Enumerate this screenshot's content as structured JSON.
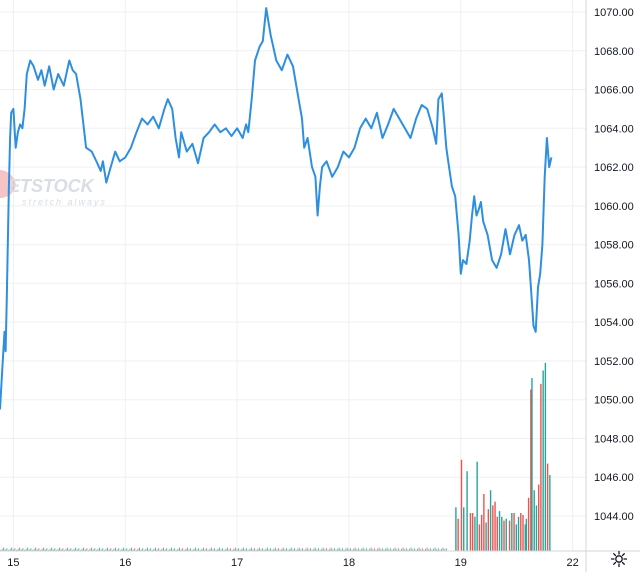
{
  "watermark": {
    "brand": "ETSTOCK",
    "tagline": "stretch always"
  },
  "icons": {
    "settings": "gear-icon"
  },
  "colors": {
    "price_line": "#2f8fdf",
    "volume_up": "#26a69a",
    "volume_down": "#ef5350",
    "grid": "#eef0f3",
    "watermark": "#d8dde6",
    "watermark_accent": "#e35a5a"
  },
  "chart_data": {
    "type": "line",
    "title": "",
    "xlabel": "",
    "ylabel": "",
    "grid": true,
    "x_ticks": [
      "15",
      "16",
      "17",
      "18",
      "19",
      "22"
    ],
    "x_tick_index": [
      0,
      1,
      2,
      3,
      4,
      5
    ],
    "y_ticks": [
      "1044.00",
      "1046.00",
      "1048.00",
      "1050.00",
      "1052.00",
      "1054.00",
      "1056.00",
      "1058.00",
      "1060.00",
      "1062.00",
      "1064.00",
      "1066.00",
      "1068.00",
      "1070.00"
    ],
    "ylim": [
      1042.0,
      1071.0
    ],
    "xlim": [
      -0.12,
      5.03
    ],
    "series": [
      {
        "kind": "price",
        "points": [
          [
            -0.12,
            1049.5
          ],
          [
            -0.1,
            1051.5
          ],
          [
            -0.08,
            1053.5
          ],
          [
            -0.07,
            1052.5
          ],
          [
            -0.06,
            1055.0
          ],
          [
            -0.04,
            1061.0
          ],
          [
            -0.03,
            1063.5
          ],
          [
            -0.02,
            1064.8
          ],
          [
            0.0,
            1065.0
          ],
          [
            0.02,
            1063.0
          ],
          [
            0.04,
            1063.8
          ],
          [
            0.06,
            1064.2
          ],
          [
            0.08,
            1064.0
          ],
          [
            0.1,
            1065.0
          ],
          [
            0.12,
            1066.8
          ],
          [
            0.15,
            1067.5
          ],
          [
            0.18,
            1067.2
          ],
          [
            0.22,
            1066.5
          ],
          [
            0.25,
            1067.0
          ],
          [
            0.28,
            1066.2
          ],
          [
            0.32,
            1067.2
          ],
          [
            0.36,
            1066.0
          ],
          [
            0.4,
            1066.8
          ],
          [
            0.45,
            1066.2
          ],
          [
            0.5,
            1067.5
          ],
          [
            0.53,
            1067.0
          ],
          [
            0.56,
            1066.8
          ],
          [
            0.6,
            1065.5
          ],
          [
            0.65,
            1063.0
          ],
          [
            0.7,
            1062.8
          ],
          [
            0.75,
            1062.2
          ],
          [
            0.78,
            1061.8
          ],
          [
            0.8,
            1062.3
          ],
          [
            0.83,
            1061.2
          ],
          [
            0.87,
            1062.0
          ],
          [
            0.91,
            1062.8
          ],
          [
            0.95,
            1062.3
          ],
          [
            1.0,
            1062.5
          ],
          [
            1.05,
            1063.0
          ],
          [
            1.1,
            1063.8
          ],
          [
            1.15,
            1064.5
          ],
          [
            1.2,
            1064.2
          ],
          [
            1.25,
            1064.6
          ],
          [
            1.3,
            1064.0
          ],
          [
            1.35,
            1065.0
          ],
          [
            1.38,
            1065.5
          ],
          [
            1.42,
            1065.0
          ],
          [
            1.45,
            1063.5
          ],
          [
            1.48,
            1062.5
          ],
          [
            1.5,
            1063.8
          ],
          [
            1.55,
            1062.8
          ],
          [
            1.6,
            1063.2
          ],
          [
            1.65,
            1062.2
          ],
          [
            1.7,
            1063.5
          ],
          [
            1.75,
            1063.8
          ],
          [
            1.8,
            1064.2
          ],
          [
            1.85,
            1063.8
          ],
          [
            1.9,
            1064.0
          ],
          [
            1.95,
            1063.6
          ],
          [
            2.0,
            1064.0
          ],
          [
            2.05,
            1063.5
          ],
          [
            2.08,
            1064.2
          ],
          [
            2.1,
            1063.8
          ],
          [
            2.13,
            1065.5
          ],
          [
            2.16,
            1067.5
          ],
          [
            2.2,
            1068.2
          ],
          [
            2.23,
            1068.5
          ],
          [
            2.26,
            1070.2
          ],
          [
            2.28,
            1069.5
          ],
          [
            2.3,
            1068.8
          ],
          [
            2.35,
            1067.5
          ],
          [
            2.4,
            1067.0
          ],
          [
            2.45,
            1067.8
          ],
          [
            2.5,
            1067.2
          ],
          [
            2.55,
            1065.5
          ],
          [
            2.58,
            1064.5
          ],
          [
            2.6,
            1063.0
          ],
          [
            2.63,
            1063.5
          ],
          [
            2.67,
            1062.0
          ],
          [
            2.7,
            1061.5
          ],
          [
            2.72,
            1059.5
          ],
          [
            2.74,
            1061.0
          ],
          [
            2.76,
            1062.0
          ],
          [
            2.8,
            1062.3
          ],
          [
            2.85,
            1061.5
          ],
          [
            2.9,
            1062.0
          ],
          [
            2.95,
            1062.8
          ],
          [
            3.0,
            1062.5
          ],
          [
            3.05,
            1063.0
          ],
          [
            3.1,
            1064.0
          ],
          [
            3.15,
            1064.5
          ],
          [
            3.2,
            1064.0
          ],
          [
            3.25,
            1064.8
          ],
          [
            3.3,
            1063.5
          ],
          [
            3.35,
            1064.2
          ],
          [
            3.4,
            1065.0
          ],
          [
            3.45,
            1064.5
          ],
          [
            3.5,
            1064.0
          ],
          [
            3.55,
            1063.5
          ],
          [
            3.6,
            1064.5
          ],
          [
            3.65,
            1065.2
          ],
          [
            3.7,
            1065.0
          ],
          [
            3.75,
            1064.0
          ],
          [
            3.78,
            1063.2
          ],
          [
            3.8,
            1065.5
          ],
          [
            3.83,
            1065.8
          ],
          [
            3.85,
            1064.5
          ],
          [
            3.87,
            1063.0
          ],
          [
            3.89,
            1062.2
          ],
          [
            3.92,
            1061.0
          ],
          [
            3.95,
            1060.5
          ],
          [
            3.98,
            1058.5
          ],
          [
            4.0,
            1056.5
          ],
          [
            4.02,
            1057.2
          ],
          [
            4.05,
            1057.0
          ],
          [
            4.08,
            1058.2
          ],
          [
            4.1,
            1059.5
          ],
          [
            4.12,
            1060.5
          ],
          [
            4.14,
            1059.5
          ],
          [
            4.16,
            1059.8
          ],
          [
            4.18,
            1060.2
          ],
          [
            4.2,
            1059.2
          ],
          [
            4.24,
            1058.5
          ],
          [
            4.28,
            1057.2
          ],
          [
            4.32,
            1056.8
          ],
          [
            4.36,
            1057.5
          ],
          [
            4.4,
            1058.8
          ],
          [
            4.44,
            1057.5
          ],
          [
            4.48,
            1058.5
          ],
          [
            4.52,
            1059.0
          ],
          [
            4.55,
            1058.2
          ],
          [
            4.58,
            1058.5
          ],
          [
            4.61,
            1057.2
          ],
          [
            4.63,
            1055.5
          ],
          [
            4.65,
            1053.8
          ],
          [
            4.67,
            1053.5
          ],
          [
            4.69,
            1055.8
          ],
          [
            4.71,
            1056.5
          ],
          [
            4.73,
            1058.0
          ],
          [
            4.75,
            1061.5
          ],
          [
            4.77,
            1063.5
          ],
          [
            4.79,
            1062.0
          ],
          [
            4.81,
            1062.5
          ]
        ]
      },
      {
        "kind": "volume",
        "bars": [
          [
            4.0,
            4.8,
            "down"
          ],
          [
            4.02,
            2.3,
            "up"
          ],
          [
            4.05,
            4.2,
            "up"
          ],
          [
            4.08,
            2.0,
            "down"
          ],
          [
            4.1,
            2.0,
            "down"
          ],
          [
            4.12,
            1.8,
            "up"
          ],
          [
            4.14,
            4.7,
            "up"
          ],
          [
            4.16,
            1.4,
            "down"
          ],
          [
            4.18,
            1.9,
            "down"
          ],
          [
            4.2,
            3.0,
            "down"
          ],
          [
            4.22,
            1.5,
            "up"
          ],
          [
            4.24,
            2.2,
            "down"
          ],
          [
            4.26,
            3.2,
            "up"
          ],
          [
            4.28,
            2.4,
            "down"
          ],
          [
            4.3,
            2.6,
            "down"
          ],
          [
            4.32,
            1.8,
            "down"
          ],
          [
            4.34,
            2.1,
            "up"
          ],
          [
            4.36,
            1.8,
            "up"
          ],
          [
            4.38,
            1.6,
            "down"
          ],
          [
            4.4,
            1.7,
            "up"
          ],
          [
            4.43,
            1.6,
            "down"
          ],
          [
            4.45,
            2.0,
            "up"
          ],
          [
            4.47,
            2.0,
            "down"
          ],
          [
            4.49,
            1.4,
            "up"
          ],
          [
            4.51,
            1.8,
            "up"
          ],
          [
            4.53,
            2.0,
            "down"
          ],
          [
            4.55,
            1.9,
            "down"
          ],
          [
            4.57,
            1.4,
            "up"
          ],
          [
            4.58,
            1.7,
            "up"
          ],
          [
            4.6,
            2.8,
            "down"
          ],
          [
            4.62,
            8.5,
            "down"
          ],
          [
            4.63,
            9.1,
            "up"
          ],
          [
            4.65,
            3.2,
            "up"
          ],
          [
            4.67,
            2.4,
            "up"
          ],
          [
            4.69,
            3.5,
            "down"
          ],
          [
            4.71,
            8.8,
            "down"
          ],
          [
            4.73,
            9.5,
            "up"
          ],
          [
            4.75,
            9.9,
            "up"
          ],
          [
            4.77,
            4.6,
            "down"
          ],
          [
            4.79,
            4.0,
            "up"
          ],
          [
            3.95,
            2.3,
            "up"
          ],
          [
            3.97,
            1.7,
            "down"
          ]
        ]
      }
    ]
  }
}
